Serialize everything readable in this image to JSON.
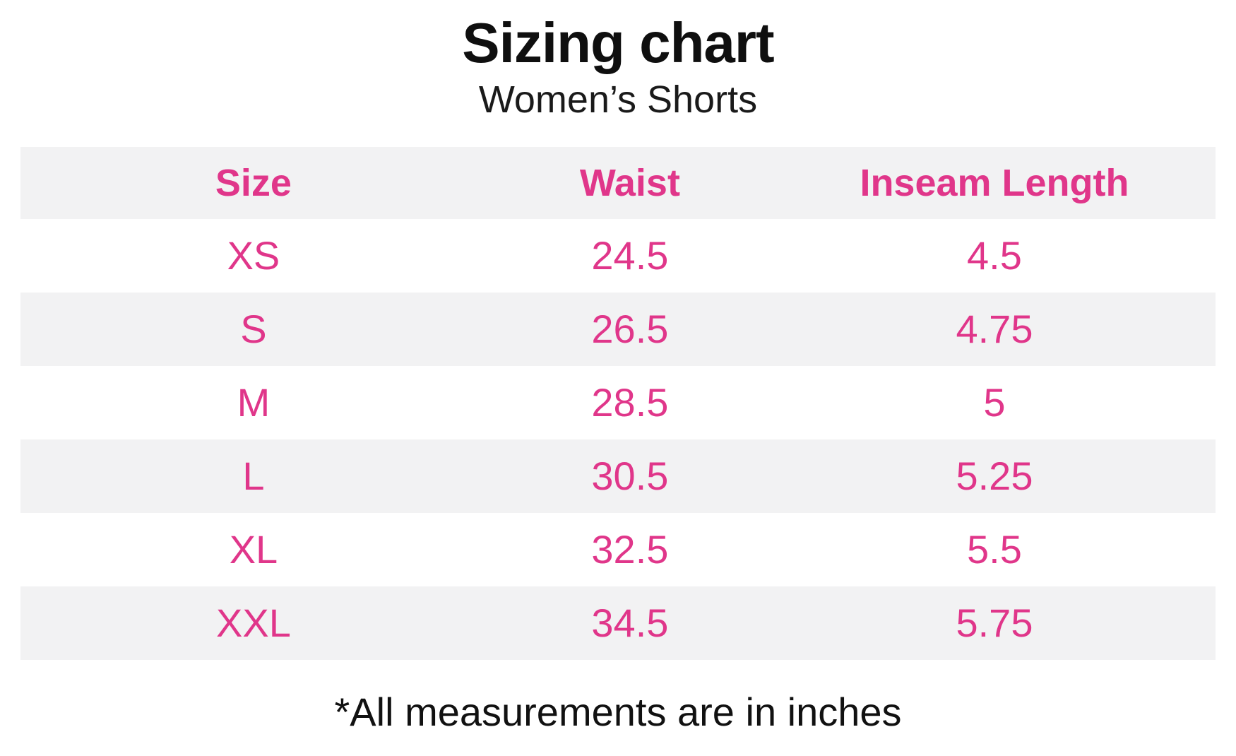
{
  "chart_data": {
    "type": "table",
    "title": "Sizing chart",
    "subtitle": "Women’s Shorts",
    "columns": [
      "Size",
      "Waist",
      "Inseam Length"
    ],
    "rows": [
      [
        "XS",
        "24.5",
        "4.5"
      ],
      [
        "S",
        "26.5",
        "4.75"
      ],
      [
        "M",
        "28.5",
        "5"
      ],
      [
        "L",
        "30.5",
        "5.25"
      ],
      [
        "XL",
        "32.5",
        "5.5"
      ],
      [
        "XXL",
        "34.5",
        "5.75"
      ]
    ],
    "footnote": "*All measurements are in inches",
    "units": "inches",
    "layout_hints": {
      "striped_rows": true,
      "header_background": "light-gray",
      "value_alignment": "center"
    }
  },
  "colors": {
    "accent_pink": "#e0368a",
    "row_stripe": "#f2f2f3",
    "text": "#111111"
  }
}
